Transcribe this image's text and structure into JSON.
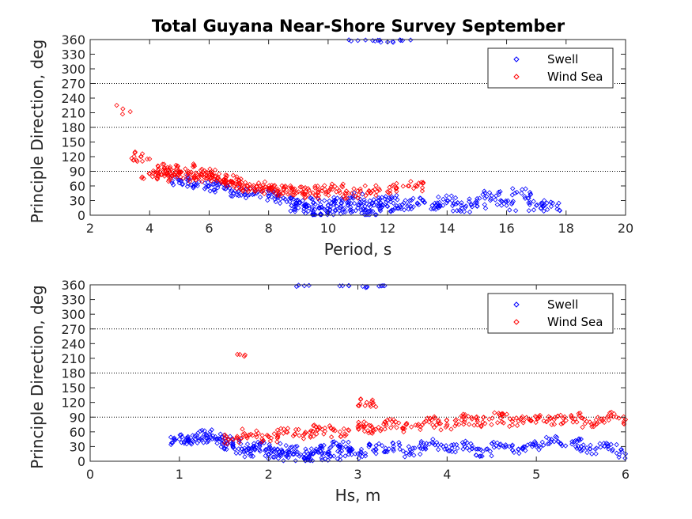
{
  "chart_data": [
    {
      "type": "scatter",
      "title": "Total Guyana Near-Shore Survey September",
      "xlabel": "Period, s",
      "ylabel": "Principle Direction, deg",
      "xlim": [
        2,
        20
      ],
      "ylim": [
        0,
        360
      ],
      "xticks": [
        "2",
        "4",
        "6",
        "8",
        "10",
        "12",
        "14",
        "16",
        "18",
        "20"
      ],
      "yticks": [
        "0",
        "30",
        "60",
        "90",
        "120",
        "150",
        "180",
        "210",
        "240",
        "270",
        "300",
        "330",
        "360"
      ],
      "reference_lines_y": [
        90,
        180,
        270
      ],
      "grid": false,
      "legend_position": "top-right",
      "marker": "diamond",
      "series": [
        {
          "name": "Swell",
          "color": "#0000ff",
          "points": [
            [
              5.0,
              72
            ],
            [
              5.5,
              65
            ],
            [
              6.0,
              60
            ],
            [
              6.5,
              55
            ],
            [
              7.0,
              50
            ],
            [
              7.5,
              45
            ],
            [
              8.0,
              40
            ],
            [
              8.5,
              35
            ],
            [
              9.0,
              30
            ],
            [
              9.0,
              15
            ],
            [
              9.5,
              25
            ],
            [
              9.5,
              8
            ],
            [
              10.0,
              20
            ],
            [
              10.0,
              5
            ],
            [
              10.5,
              30
            ],
            [
              10.5,
              12
            ],
            [
              11.0,
              35
            ],
            [
              11.0,
              15
            ],
            [
              11.5,
              25
            ],
            [
              11.5,
              8
            ],
            [
              12.0,
              30
            ],
            [
              12.0,
              18
            ],
            [
              12.5,
              22
            ],
            [
              13.0,
              25
            ],
            [
              13.5,
              20
            ],
            [
              14.0,
              30
            ],
            [
              14.5,
              15
            ],
            [
              15.0,
              25
            ],
            [
              15.5,
              40
            ],
            [
              16.0,
              20
            ],
            [
              16.5,
              45
            ],
            [
              17.0,
              20
            ],
            [
              17.5,
              18
            ],
            [
              11.0,
              358
            ],
            [
              11.5,
              358
            ],
            [
              12.0,
              355
            ],
            [
              12.5,
              358
            ]
          ]
        },
        {
          "name": "Wind Sea",
          "color": "#ff0000",
          "points": [
            [
              3.1,
              218
            ],
            [
              3.7,
              120
            ],
            [
              4.0,
              85
            ],
            [
              4.3,
              95
            ],
            [
              4.5,
              80
            ],
            [
              4.8,
              90
            ],
            [
              5.0,
              85
            ],
            [
              5.2,
              95
            ],
            [
              5.5,
              80
            ],
            [
              5.8,
              88
            ],
            [
              6.0,
              82
            ],
            [
              6.3,
              78
            ],
            [
              6.5,
              72
            ],
            [
              6.8,
              68
            ],
            [
              7.0,
              65
            ],
            [
              7.3,
              60
            ],
            [
              7.6,
              58
            ],
            [
              8.0,
              55
            ],
            [
              8.3,
              50
            ],
            [
              8.6,
              52
            ],
            [
              9.0,
              48
            ],
            [
              9.4,
              45
            ],
            [
              9.8,
              50
            ],
            [
              10.3,
              55
            ],
            [
              10.8,
              45
            ],
            [
              11.5,
              50
            ],
            [
              12.3,
              55
            ],
            [
              13.0,
              60
            ]
          ]
        }
      ]
    },
    {
      "type": "scatter",
      "title": "",
      "xlabel": "Hs, m",
      "ylabel": "Principle Direction, deg",
      "xlim": [
        0,
        6
      ],
      "ylim": [
        0,
        360
      ],
      "xticks": [
        "0",
        "1",
        "2",
        "3",
        "4",
        "5",
        "6"
      ],
      "yticks": [
        "0",
        "30",
        "60",
        "90",
        "120",
        "150",
        "180",
        "210",
        "240",
        "270",
        "300",
        "330",
        "360"
      ],
      "reference_lines_y": [
        90,
        180,
        270
      ],
      "grid": false,
      "legend_position": "top-right",
      "marker": "diamond",
      "series": [
        {
          "name": "Swell",
          "color": "#0000ff",
          "points": [
            [
              1.0,
              45
            ],
            [
              1.1,
              45
            ],
            [
              1.2,
              48
            ],
            [
              1.3,
              55
            ],
            [
              1.4,
              45
            ],
            [
              1.5,
              40
            ],
            [
              1.6,
              35
            ],
            [
              1.7,
              25
            ],
            [
              1.8,
              20
            ],
            [
              1.9,
              30
            ],
            [
              2.0,
              15
            ],
            [
              2.1,
              25
            ],
            [
              2.2,
              10
            ],
            [
              2.3,
              20
            ],
            [
              2.4,
              5
            ],
            [
              2.5,
              15
            ],
            [
              2.6,
              25
            ],
            [
              2.7,
              10
            ],
            [
              2.8,
              30
            ],
            [
              2.9,
              20
            ],
            [
              3.0,
              15
            ],
            [
              3.2,
              25
            ],
            [
              3.4,
              30
            ],
            [
              3.6,
              20
            ],
            [
              3.8,
              35
            ],
            [
              4.0,
              25
            ],
            [
              4.2,
              30
            ],
            [
              4.4,
              20
            ],
            [
              4.6,
              35
            ],
            [
              4.8,
              25
            ],
            [
              5.0,
              30
            ],
            [
              5.2,
              40
            ],
            [
              5.4,
              35
            ],
            [
              5.6,
              25
            ],
            [
              5.8,
              30
            ],
            [
              6.0,
              15
            ],
            [
              2.4,
              358
            ],
            [
              2.9,
              358
            ],
            [
              3.1,
              355
            ],
            [
              3.3,
              358
            ]
          ]
        },
        {
          "name": "Wind Sea",
          "color": "#ff0000",
          "points": [
            [
              1.65,
              218
            ],
            [
              1.6,
              45
            ],
            [
              1.8,
              55
            ],
            [
              2.0,
              50
            ],
            [
              2.2,
              60
            ],
            [
              2.4,
              55
            ],
            [
              2.6,
              65
            ],
            [
              2.8,
              60
            ],
            [
              3.0,
              70
            ],
            [
              3.1,
              120
            ],
            [
              3.2,
              65
            ],
            [
              3.4,
              75
            ],
            [
              3.6,
              70
            ],
            [
              3.8,
              80
            ],
            [
              4.0,
              75
            ],
            [
              4.2,
              85
            ],
            [
              4.4,
              80
            ],
            [
              4.6,
              88
            ],
            [
              4.8,
              82
            ],
            [
              5.0,
              90
            ],
            [
              5.2,
              85
            ],
            [
              5.4,
              88
            ],
            [
              5.6,
              80
            ],
            [
              5.8,
              90
            ],
            [
              6.0,
              85
            ]
          ]
        }
      ]
    }
  ]
}
